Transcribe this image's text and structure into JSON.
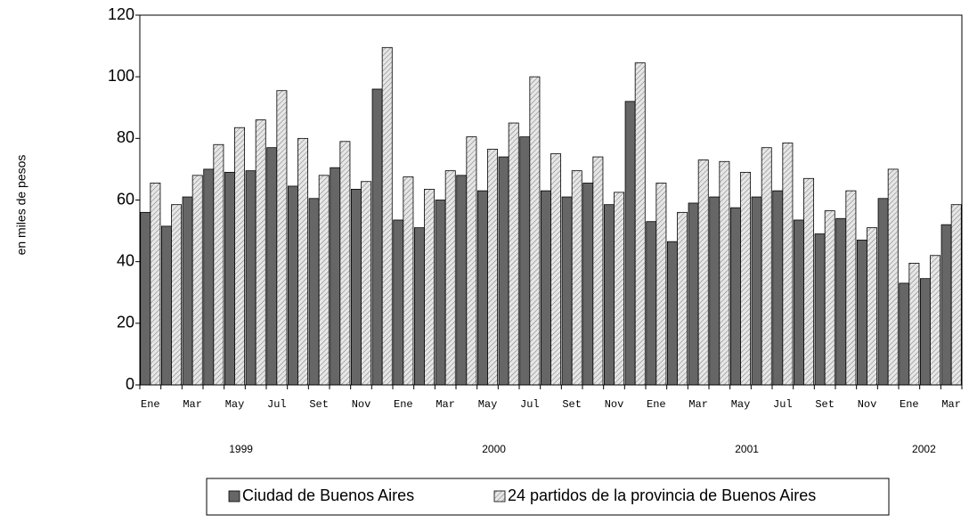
{
  "chart_data": {
    "type": "bar",
    "y_label": "en miles de pesos",
    "categories": [
      "Ene",
      null,
      "Mar",
      null,
      "May",
      null,
      "Jul",
      null,
      "Set",
      null,
      "Nov",
      null,
      "Ene",
      null,
      "Mar",
      null,
      "May",
      null,
      "Jul",
      null,
      "Set",
      null,
      "Nov",
      null,
      "Ene",
      null,
      "Mar",
      null,
      "May",
      null,
      "Jul",
      null,
      "Set",
      null,
      "Nov",
      null,
      "Ene",
      null,
      "Mar"
    ],
    "year_groups": [
      {
        "label": "1999",
        "months": 12
      },
      {
        "label": "2000",
        "months": 12
      },
      {
        "label": "2001",
        "months": 12
      },
      {
        "label": "2002",
        "months": 3
      }
    ],
    "series": [
      {
        "name": "Ciudad de Buenos Aires",
        "color": "#666666",
        "values": [
          56,
          51.5,
          61,
          70,
          69,
          69.5,
          77,
          64.5,
          60.5,
          70.5,
          63.5,
          96,
          53.5,
          51,
          60,
          68,
          63,
          74,
          80.5,
          63,
          61,
          65.5,
          58.5,
          92,
          53,
          46.5,
          59,
          61,
          57.5,
          61,
          63,
          53.5,
          49,
          54,
          47,
          60.5,
          33,
          34.5,
          52
        ]
      },
      {
        "name": "24 partidos de la provincia de Buenos Aires",
        "color": "#e6e6e6",
        "values": [
          65.5,
          58.5,
          68,
          78,
          83.5,
          86,
          95.5,
          80,
          68,
          79,
          66,
          109.5,
          67.5,
          63.5,
          69.5,
          80.5,
          76.5,
          85,
          100,
          75,
          69.5,
          74,
          62.5,
          104.5,
          65.5,
          56,
          73,
          72.5,
          69,
          77,
          78.5,
          67,
          56.5,
          63,
          51,
          70,
          39.5,
          42,
          58.5
        ]
      }
    ],
    "ylim": [
      0,
      120
    ],
    "yticks": [
      0,
      20,
      40,
      60,
      80,
      100,
      120
    ]
  }
}
